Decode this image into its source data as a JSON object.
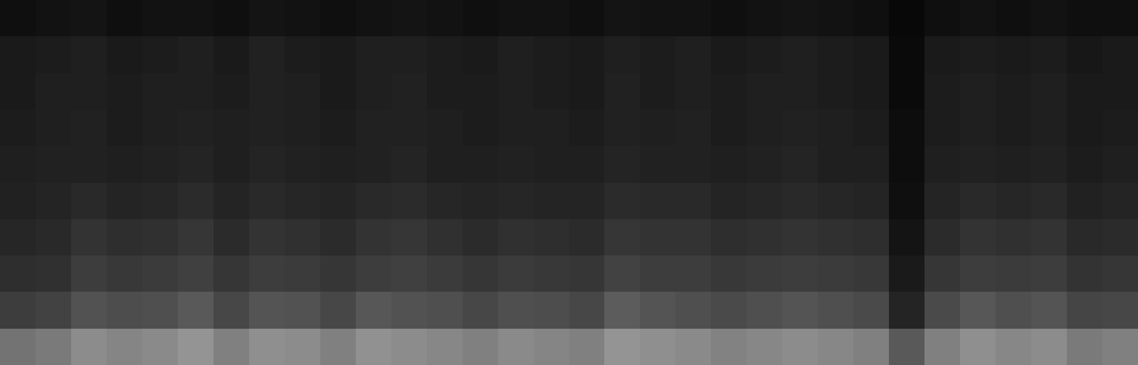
{
  "chart_data": {
    "type": "heatmap",
    "tick_labels": false,
    "zlim": [
      0,
      1
    ],
    "colors": [
      "#000000",
      "#ffffff"
    ],
    "cells": [
      [
        0.06,
        0.07,
        0.08,
        0.06,
        0.07,
        0.07,
        0.06,
        0.08,
        0.07,
        0.06,
        0.07,
        0.08,
        0.07,
        0.06,
        0.07,
        0.07,
        0.06,
        0.08,
        0.07,
        0.07,
        0.06,
        0.07,
        0.08,
        0.07,
        0.06,
        0.03,
        0.06,
        0.07,
        0.06,
        0.07,
        0.06,
        0.06
      ],
      [
        0.1,
        0.11,
        0.12,
        0.1,
        0.11,
        0.12,
        0.1,
        0.13,
        0.11,
        0.1,
        0.12,
        0.12,
        0.11,
        0.1,
        0.12,
        0.11,
        0.1,
        0.12,
        0.11,
        0.12,
        0.1,
        0.11,
        0.12,
        0.11,
        0.1,
        0.04,
        0.1,
        0.11,
        0.1,
        0.11,
        0.09,
        0.1
      ],
      [
        0.1,
        0.12,
        0.12,
        0.11,
        0.12,
        0.12,
        0.11,
        0.13,
        0.12,
        0.1,
        0.12,
        0.13,
        0.11,
        0.11,
        0.12,
        0.11,
        0.1,
        0.13,
        0.11,
        0.12,
        0.11,
        0.12,
        0.12,
        0.11,
        0.1,
        0.04,
        0.11,
        0.12,
        0.11,
        0.12,
        0.1,
        0.1
      ],
      [
        0.11,
        0.12,
        0.13,
        0.11,
        0.12,
        0.13,
        0.12,
        0.13,
        0.12,
        0.11,
        0.13,
        0.13,
        0.12,
        0.11,
        0.12,
        0.12,
        0.11,
        0.13,
        0.12,
        0.13,
        0.11,
        0.12,
        0.13,
        0.12,
        0.11,
        0.05,
        0.11,
        0.12,
        0.11,
        0.12,
        0.1,
        0.11
      ],
      [
        0.12,
        0.13,
        0.13,
        0.12,
        0.13,
        0.14,
        0.12,
        0.14,
        0.13,
        0.12,
        0.13,
        0.14,
        0.12,
        0.12,
        0.13,
        0.12,
        0.12,
        0.14,
        0.13,
        0.13,
        0.12,
        0.13,
        0.14,
        0.12,
        0.12,
        0.05,
        0.12,
        0.13,
        0.12,
        0.13,
        0.11,
        0.12
      ],
      [
        0.13,
        0.14,
        0.16,
        0.14,
        0.15,
        0.17,
        0.14,
        0.16,
        0.15,
        0.14,
        0.16,
        0.17,
        0.15,
        0.14,
        0.15,
        0.14,
        0.14,
        0.17,
        0.16,
        0.16,
        0.14,
        0.15,
        0.16,
        0.15,
        0.14,
        0.06,
        0.14,
        0.16,
        0.15,
        0.16,
        0.13,
        0.14
      ],
      [
        0.15,
        0.16,
        0.2,
        0.18,
        0.19,
        0.21,
        0.17,
        0.2,
        0.19,
        0.17,
        0.2,
        0.21,
        0.19,
        0.17,
        0.19,
        0.18,
        0.17,
        0.21,
        0.2,
        0.2,
        0.18,
        0.19,
        0.2,
        0.19,
        0.18,
        0.08,
        0.17,
        0.2,
        0.19,
        0.2,
        0.16,
        0.17
      ],
      [
        0.18,
        0.19,
        0.24,
        0.22,
        0.23,
        0.25,
        0.21,
        0.24,
        0.23,
        0.21,
        0.24,
        0.25,
        0.23,
        0.21,
        0.23,
        0.22,
        0.21,
        0.26,
        0.24,
        0.24,
        0.22,
        0.23,
        0.24,
        0.23,
        0.22,
        0.1,
        0.21,
        0.24,
        0.23,
        0.24,
        0.2,
        0.21
      ],
      [
        0.24,
        0.26,
        0.32,
        0.3,
        0.31,
        0.35,
        0.28,
        0.33,
        0.32,
        0.28,
        0.34,
        0.32,
        0.31,
        0.28,
        0.31,
        0.3,
        0.28,
        0.36,
        0.33,
        0.31,
        0.29,
        0.31,
        0.33,
        0.31,
        0.29,
        0.14,
        0.29,
        0.34,
        0.31,
        0.33,
        0.27,
        0.28
      ],
      [
        0.45,
        0.48,
        0.55,
        0.52,
        0.54,
        0.58,
        0.5,
        0.56,
        0.55,
        0.5,
        0.57,
        0.55,
        0.53,
        0.5,
        0.54,
        0.52,
        0.5,
        0.58,
        0.56,
        0.54,
        0.51,
        0.53,
        0.55,
        0.53,
        0.5,
        0.35,
        0.5,
        0.56,
        0.53,
        0.55,
        0.48,
        0.5
      ]
    ]
  }
}
